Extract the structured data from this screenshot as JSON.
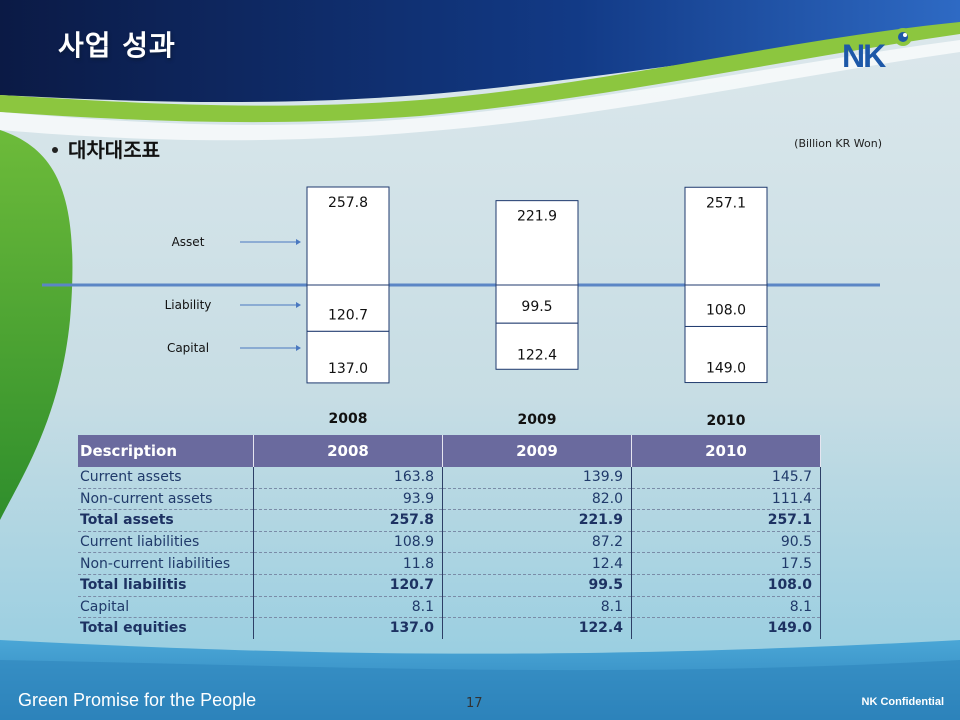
{
  "slide": {
    "title": "사업 성과",
    "section": "대차대조표",
    "unit_note": "(Billion KR Won)"
  },
  "logo": {
    "text": "NK"
  },
  "chart_data": {
    "type": "bar",
    "categories": [
      "2008",
      "2009",
      "2010"
    ],
    "row_labels": [
      "Asset",
      "Liability",
      "Capital"
    ],
    "series": [
      {
        "name": "Asset",
        "values": [
          257.8,
          221.9,
          257.1
        ]
      },
      {
        "name": "Liability",
        "values": [
          120.7,
          99.5,
          108.0
        ]
      },
      {
        "name": "Capital",
        "values": [
          137.0,
          122.4,
          149.0
        ]
      }
    ],
    "value_labels": {
      "asset": [
        "257.8",
        "221.9",
        "257.1"
      ],
      "liability": [
        "120.7",
        "99.5",
        "108.0"
      ],
      "capital": [
        "137.0",
        "122.4",
        "149.0"
      ]
    },
    "colors": {
      "axis": "#5b86c5",
      "arrow": "#4a78c0",
      "bar_fill": "#ffffff",
      "bar_stroke": "#1f3a6e"
    }
  },
  "table": {
    "headers": [
      "Description",
      "2008",
      "2009",
      "2010"
    ],
    "rows": [
      {
        "label": "Current assets",
        "values": [
          "163.8",
          "139.9",
          "145.7"
        ],
        "total": false
      },
      {
        "label": "Non-current assets",
        "values": [
          "93.9",
          "82.0",
          "111.4"
        ],
        "total": false
      },
      {
        "label": "Total assets",
        "values": [
          "257.8",
          "221.9",
          "257.1"
        ],
        "total": true
      },
      {
        "label": "Current liabilities",
        "values": [
          "108.9",
          "87.2",
          "90.5"
        ],
        "total": false
      },
      {
        "label": "Non-current liabilities",
        "values": [
          "11.8",
          "12.4",
          "17.5"
        ],
        "total": false
      },
      {
        "label": "Total liabilitis",
        "values": [
          "120.7",
          "99.5",
          "108.0"
        ],
        "total": true
      },
      {
        "label": "Capital",
        "values": [
          "8.1",
          "8.1",
          "8.1"
        ],
        "total": false
      },
      {
        "label": "Total equities",
        "values": [
          "137.0",
          "122.4",
          "149.0"
        ],
        "total": true
      }
    ]
  },
  "footer": {
    "tagline": "Green Promise for the People",
    "page": "17",
    "confidential": "NK Confidential"
  }
}
